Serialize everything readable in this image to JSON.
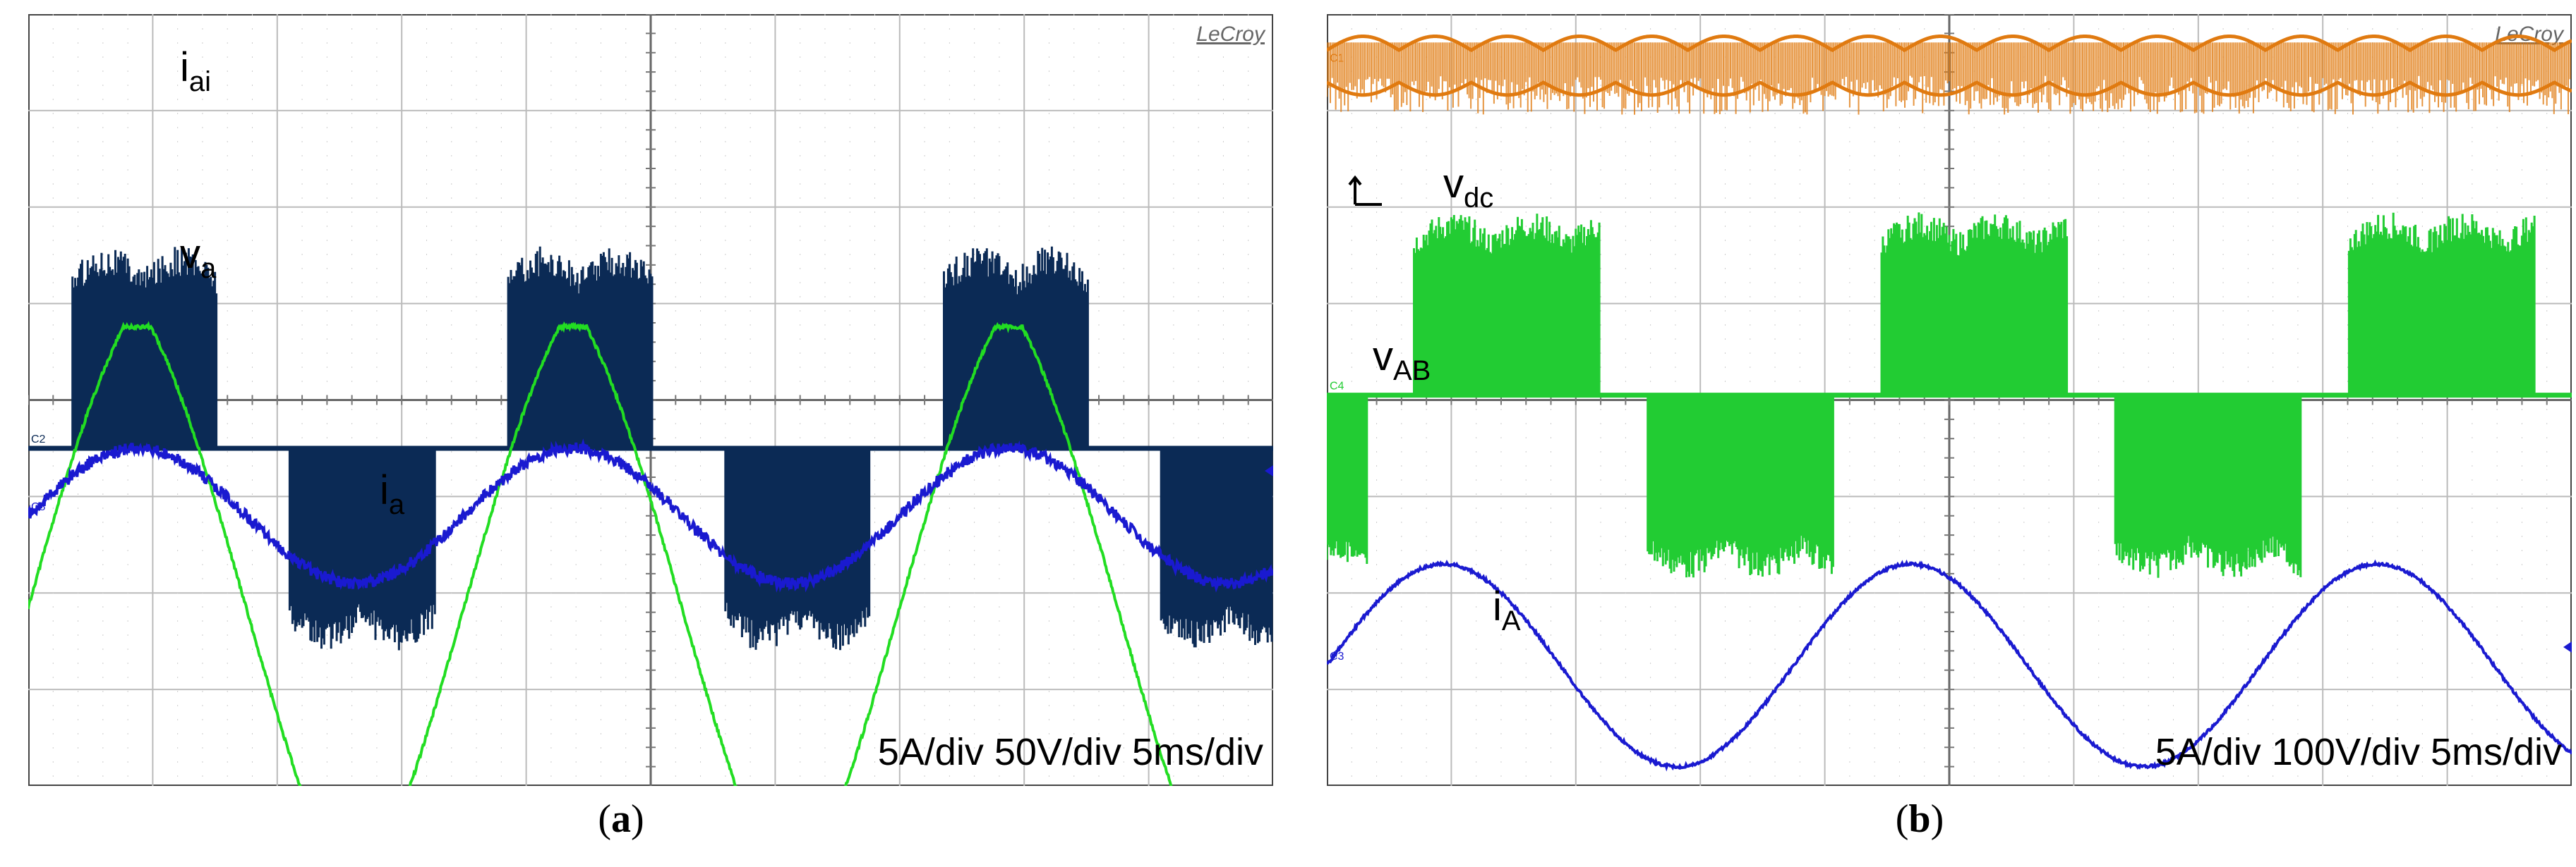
{
  "chart_data": [
    {
      "type": "line",
      "panel_label": "a",
      "brand": "LeCroy",
      "scale_text": "5A/div 50V/div 5ms/div",
      "grid": {
        "divisions_x": 10,
        "divisions_y": 8
      },
      "series": [
        {
          "name": "i_ai",
          "label_main": "i",
          "label_sub": "ai",
          "color": "#0b2a55",
          "channel": "C2",
          "kind": "pwm_six_step",
          "period_div": 3.5,
          "phase_div": 0.35,
          "level_hi": 2.1,
          "level_lo": -2.1,
          "offset_div": 4.5
        },
        {
          "name": "v_a",
          "label_main": "v",
          "label_sub": "a",
          "color": "#22dd22",
          "channel": "",
          "kind": "triangle_sine",
          "period_div": 3.5,
          "phase_div": 0.0,
          "amplitude": 3.0,
          "offset_div": 6.15
        },
        {
          "name": "i_a",
          "label_main": "i",
          "label_sub": "a",
          "color": "#1a1ad0",
          "channel": "C8",
          "kind": "noisy_sine",
          "period_div": 3.5,
          "phase_div": 0.0,
          "amplitude": 0.7,
          "offset_div": 5.2
        }
      ]
    },
    {
      "type": "line",
      "panel_label": "b",
      "brand": "LeCroy",
      "scale_text": "5A/div 100V/div 5ms/div",
      "grid": {
        "divisions_x": 10,
        "divisions_y": 8
      },
      "series": [
        {
          "name": "v_dc",
          "label_main": "v",
          "label_sub": "dc",
          "color": "#e07a10",
          "channel": "C1",
          "kind": "ripple",
          "period_div": 0.58,
          "amplitude": 0.32,
          "offset_div": 0.55
        },
        {
          "name": "v_AB",
          "label_main": "v",
          "label_sub": "AB",
          "color": "#22cc33",
          "channel": "C4",
          "kind": "pwm_three_level",
          "period_div": 3.75,
          "phase_div": 0.7,
          "level_hi": 1.9,
          "level_lo": -1.9,
          "offset_div": 3.95
        },
        {
          "name": "i_A",
          "label_main": "i",
          "label_sub": "A",
          "color": "#1a1ad0",
          "channel": "C3",
          "kind": "clean_sine",
          "period_div": 3.75,
          "phase_div": 0.0,
          "amplitude": 1.05,
          "offset_div": 6.75
        }
      ]
    }
  ]
}
